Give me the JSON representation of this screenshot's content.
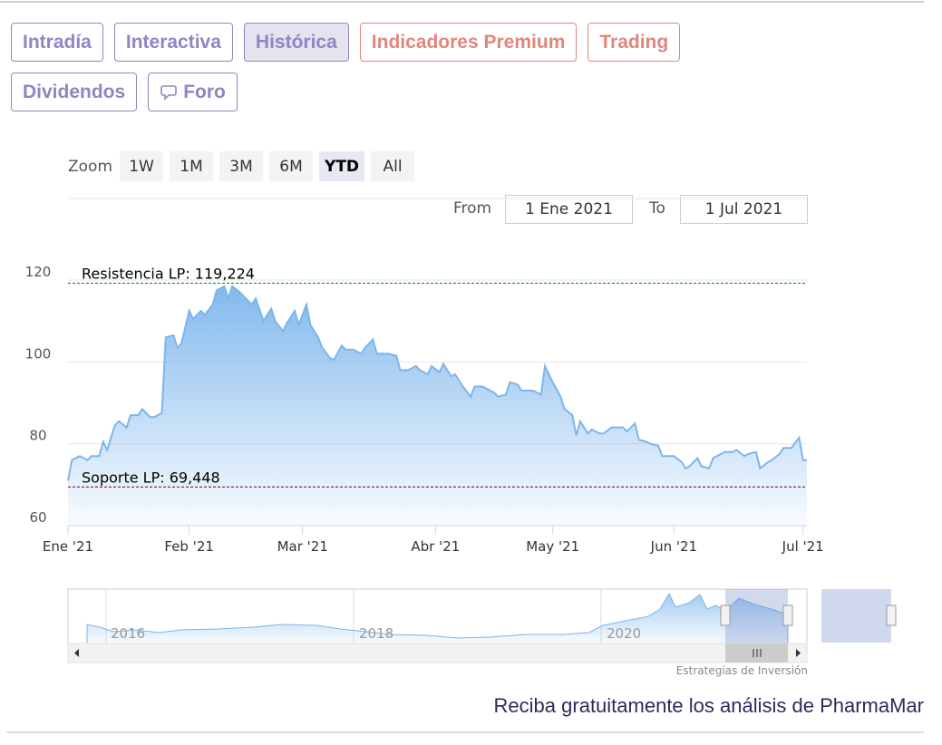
{
  "tabs": [
    {
      "label": "Intradía",
      "color": "#8c87c4"
    },
    {
      "label": "Interactiva",
      "color": "#8c87c4"
    },
    {
      "label": "Histórica",
      "color": "#8c87c4",
      "active": true
    },
    {
      "label": "Indicadores Premium",
      "color": "#e0877d"
    },
    {
      "label": "Trading",
      "color": "#e0877d"
    },
    {
      "label": "Dividendos",
      "color": "#8c87c4"
    },
    {
      "label": "Foro",
      "color": "#8c87c4",
      "icon": "chat"
    }
  ],
  "zoom": {
    "label": "Zoom",
    "buttons": [
      {
        "label": "1W"
      },
      {
        "label": "1M"
      },
      {
        "label": "3M"
      },
      {
        "label": "6M"
      },
      {
        "label": "YTD",
        "selected": true
      },
      {
        "label": "All"
      }
    ]
  },
  "range": {
    "from_label": "From",
    "from": "1 Ene 2021",
    "to_label": "To",
    "to": "1 Jul 2021"
  },
  "chart_data": {
    "type": "area",
    "color": "#7cb5ec",
    "x": [
      0,
      1,
      3,
      5,
      6,
      8,
      9,
      10,
      12,
      13,
      15,
      16,
      18,
      19,
      21,
      22,
      24,
      25,
      27,
      28,
      29,
      31,
      32,
      34,
      35,
      37,
      38,
      40,
      41,
      42,
      44,
      45,
      47,
      48,
      50,
      52,
      53,
      55,
      56,
      58,
      59,
      61,
      62,
      64,
      65,
      67,
      68,
      70,
      71,
      73,
      75,
      76,
      78,
      79,
      81,
      82,
      84,
      85,
      87,
      89,
      90,
      92,
      93,
      95,
      96,
      98,
      99,
      101,
      103,
      104,
      106,
      107,
      109,
      110,
      112,
      113,
      115,
      116,
      118,
      119,
      121,
      122,
      124,
      126,
      127,
      129,
      130,
      131,
      133,
      134,
      136,
      137,
      139,
      140,
      142,
      143,
      145,
      146,
      148,
      149,
      151,
      152,
      154,
      155,
      157,
      158,
      159,
      161,
      162,
      164,
      165,
      167,
      168,
      170,
      171,
      173,
      174,
      176,
      177,
      179,
      180,
      182,
      183,
      185,
      187,
      188,
      189
    ],
    "values": [
      71,
      76,
      77,
      76,
      77,
      77,
      80.5,
      78.5,
      84.5,
      85.5,
      84,
      87,
      87,
      88.5,
      86.5,
      86.5,
      87.5,
      106,
      106.5,
      103.5,
      104.5,
      112.5,
      110.5,
      112.5,
      111.5,
      114,
      117.5,
      118.5,
      115.5,
      118.5,
      117,
      116,
      114,
      115.5,
      110,
      113,
      110,
      107.5,
      109.5,
      112.5,
      109,
      114,
      109,
      106,
      103.5,
      101,
      100.5,
      104,
      103,
      103,
      102,
      103.5,
      105.5,
      102,
      102,
      102,
      101.5,
      98,
      98,
      99,
      98,
      97,
      99,
      97.5,
      99.5,
      96.5,
      97,
      94,
      91.5,
      94,
      94,
      93.5,
      92.5,
      91.5,
      92,
      95,
      94.5,
      93,
      93,
      93,
      92,
      99,
      95,
      91.5,
      88.5,
      87,
      82,
      85.5,
      82.5,
      83.5,
      82.5,
      82.5,
      84,
      84,
      84,
      83,
      85,
      81,
      80.5,
      80,
      79.5,
      77,
      77,
      77,
      75.5,
      74,
      74.5,
      76.5,
      74.5,
      74,
      76.5,
      77.5,
      78,
      78,
      78.5,
      77,
      77.5,
      78,
      74,
      75.5,
      76,
      77.5,
      79,
      79,
      81.5,
      76,
      76
    ],
    "xlim": [
      0,
      189
    ],
    "xticks": [
      {
        "value": 0,
        "label": "Ene '21"
      },
      {
        "value": 31,
        "label": "Feb '21"
      },
      {
        "value": 60,
        "label": "Mar '21"
      },
      {
        "value": 94,
        "label": "Abr '21"
      },
      {
        "value": 124,
        "label": "May '21"
      },
      {
        "value": 155,
        "label": "Jun '21"
      },
      {
        "value": 188,
        "label": "Jul '21"
      }
    ],
    "ylim": [
      60,
      122
    ],
    "yticks": [
      60,
      80,
      100,
      120
    ],
    "grid": true,
    "lines": [
      {
        "label": "Resistencia LP: 119,224",
        "value": 119.224,
        "color": "#2f8f2f"
      },
      {
        "label": "Soporte LP: 69,448",
        "value": 69.448,
        "color": "#8b1a1a"
      }
    ]
  },
  "navigator": {
    "labels": [
      "2016",
      "2018",
      "2020"
    ]
  },
  "credit": "Estrategias de Inversión",
  "footer": "Reciba gratuitamente los análisis de PharmaMar"
}
